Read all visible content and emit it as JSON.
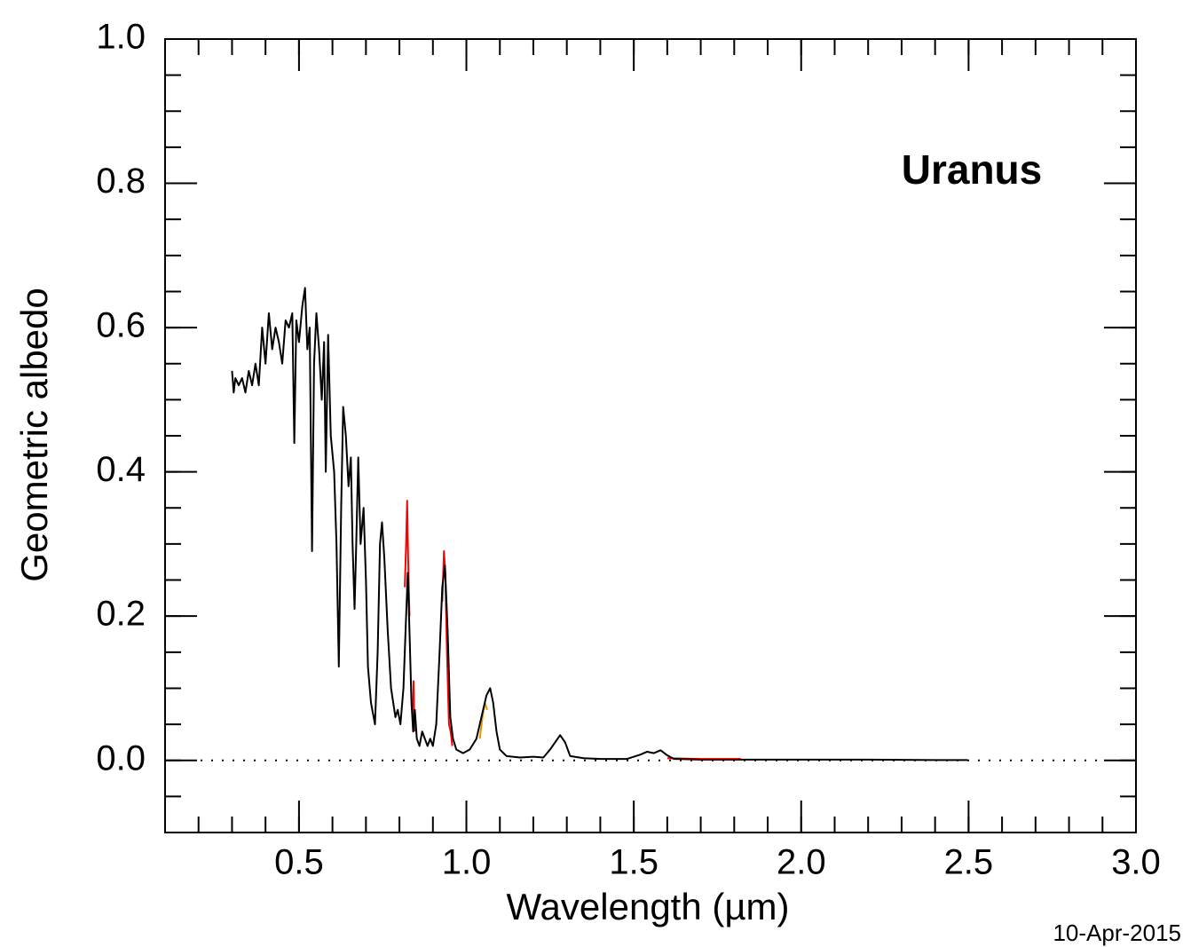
{
  "chart_data": {
    "type": "line",
    "annotation": "Uranus",
    "date": "10-Apr-2015",
    "x_label": "Wavelength (µm)",
    "y_label": "Geometric albedo",
    "xlim": [
      0.1,
      3.0
    ],
    "ylim": [
      -0.1,
      1.0
    ],
    "xticks": [
      0.5,
      {
        "value": 1.0,
        "label": "1.0"
      },
      1.5,
      {
        "value": 2.0,
        "label": "2.0"
      },
      2.5,
      {
        "value": 3.0,
        "label": "3.0"
      }
    ],
    "yticks": [
      {
        "value": 0,
        "label": "0.0"
      },
      0.2,
      0.4,
      0.6,
      0.8,
      {
        "value": 1.0,
        "label": "1.0"
      }
    ],
    "series": [
      {
        "color": "#000000",
        "x": [
          0.3,
          0.305,
          0.31,
          0.32,
          0.33,
          0.34,
          0.35,
          0.36,
          0.37,
          0.38,
          0.39,
          0.4,
          0.41,
          0.42,
          0.43,
          0.44,
          0.45,
          0.46,
          0.47,
          0.48,
          0.486,
          0.492,
          0.5,
          0.51,
          0.518,
          0.525,
          0.532,
          0.539,
          0.545,
          0.552,
          0.56,
          0.568,
          0.575,
          0.58,
          0.587,
          0.595,
          0.605,
          0.612,
          0.619,
          0.626,
          0.632,
          0.64,
          0.648,
          0.655,
          0.66,
          0.666,
          0.671,
          0.677,
          0.684,
          0.693,
          0.7,
          0.706,
          0.715,
          0.727,
          0.735,
          0.742,
          0.748,
          0.755,
          0.765,
          0.775,
          0.788,
          0.795,
          0.803,
          0.812,
          0.82,
          0.825,
          0.83,
          0.836,
          0.841,
          0.846,
          0.852,
          0.86,
          0.868,
          0.876,
          0.884,
          0.892,
          0.9,
          0.91,
          0.92,
          0.928,
          0.936,
          0.944,
          0.952,
          0.96,
          0.97,
          0.99,
          1.01,
          1.03,
          1.045,
          1.06,
          1.071,
          1.08,
          1.09,
          1.1,
          1.12,
          1.16,
          1.2,
          1.23,
          1.25,
          1.265,
          1.28,
          1.295,
          1.31,
          1.35,
          1.4,
          1.48,
          1.52,
          1.54,
          1.56,
          1.58,
          1.6,
          1.62,
          1.7,
          1.85,
          2.0,
          2.2,
          2.4,
          2.497
        ],
        "values": [
          0.54,
          0.51,
          0.53,
          0.52,
          0.53,
          0.51,
          0.54,
          0.52,
          0.55,
          0.52,
          0.6,
          0.55,
          0.62,
          0.57,
          0.6,
          0.58,
          0.55,
          0.61,
          0.6,
          0.62,
          0.44,
          0.61,
          0.58,
          0.63,
          0.655,
          0.57,
          0.6,
          0.29,
          0.55,
          0.62,
          0.57,
          0.5,
          0.58,
          0.4,
          0.59,
          0.45,
          0.4,
          0.3,
          0.13,
          0.35,
          0.49,
          0.45,
          0.38,
          0.42,
          0.3,
          0.21,
          0.3,
          0.42,
          0.3,
          0.35,
          0.25,
          0.13,
          0.08,
          0.05,
          0.15,
          0.3,
          0.33,
          0.28,
          0.18,
          0.1,
          0.06,
          0.07,
          0.05,
          0.1,
          0.2,
          0.26,
          0.18,
          0.08,
          0.04,
          0.07,
          0.03,
          0.02,
          0.04,
          0.03,
          0.02,
          0.03,
          0.02,
          0.05,
          0.15,
          0.24,
          0.27,
          0.18,
          0.06,
          0.03,
          0.015,
          0.01,
          0.015,
          0.03,
          0.06,
          0.09,
          0.1,
          0.08,
          0.04,
          0.015,
          0.006,
          0.004,
          0.005,
          0.004,
          0.015,
          0.025,
          0.035,
          0.025,
          0.006,
          0.003,
          0.002,
          0.002,
          0.008,
          0.012,
          0.01,
          0.014,
          0.007,
          0.002,
          0.001,
          0.001,
          0.001,
          0.001,
          0.0005,
          0.0005
        ]
      },
      {
        "color": "#ff0000",
        "x": [
          0.816,
          0.82,
          0.823,
          0.826,
          0.83,
          0.835,
          0.84,
          0.842,
          0.845,
          0.85,
          0.928,
          0.933,
          0.937,
          0.942,
          0.948,
          0.953,
          0.958,
          0.965,
          1.6,
          1.7,
          1.82
        ],
        "values": [
          0.24,
          0.3,
          0.36,
          0.28,
          0.2,
          null,
          0.05,
          0.11,
          0.04,
          null,
          0.22,
          0.29,
          0.26,
          0.15,
          0.05,
          0.04,
          0.02,
          null,
          0.003,
          0.002,
          0.002
        ]
      },
      {
        "color": "#e69500",
        "x": [
          1.04,
          1.048,
          1.055,
          1.062
        ],
        "values": [
          0.03,
          0.06,
          0.08,
          0.07
        ]
      }
    ]
  }
}
